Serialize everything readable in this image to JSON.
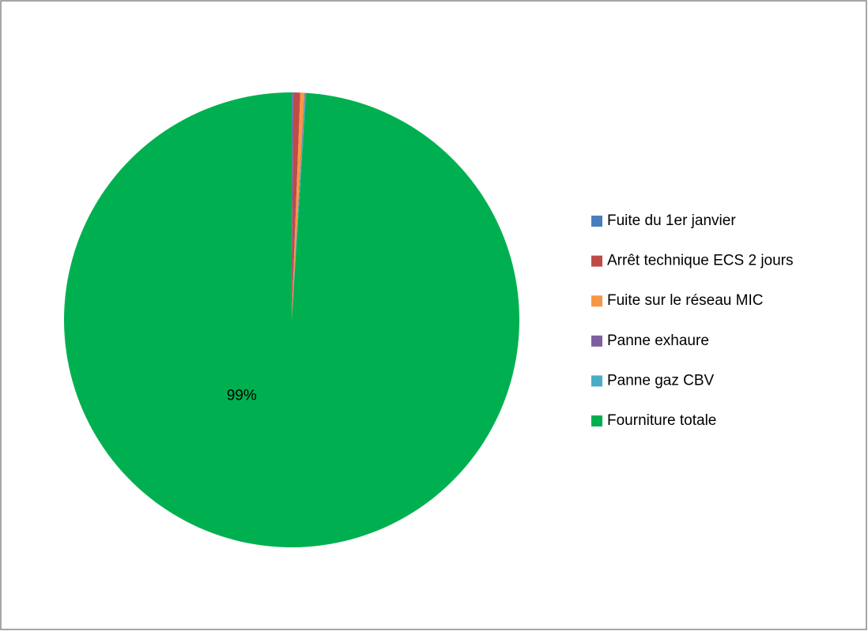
{
  "chart_data": {
    "type": "pie",
    "categories": [
      "Fuite du 1er janvier",
      "Arrêt technique ECS 2 jours",
      "Fuite sur le réseau MIC",
      "Panne exhaure",
      "Panne gaz CBV",
      "Fourniture totale"
    ],
    "values": [
      0.1,
      0.5,
      0.3,
      0.05,
      0.05,
      99.0
    ],
    "value_labels": [
      null,
      null,
      null,
      null,
      null,
      "99%"
    ],
    "colors": [
      "#4a7ebb",
      "#be4b48",
      "#f79646",
      "#7d60a0",
      "#4bacc6",
      "#00b050"
    ],
    "legend": "right"
  }
}
